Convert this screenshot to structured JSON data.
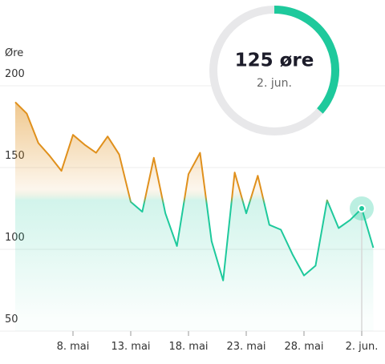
{
  "chart_data": {
    "type": "area-line",
    "y_label": "Øre",
    "annotation": "125 øre",
    "annotation_date": "2. jun.",
    "categories": [
      null,
      null,
      null,
      null,
      null,
      "8. mai",
      null,
      null,
      null,
      null,
      "13. mai",
      null,
      null,
      null,
      null,
      "18. mai",
      null,
      null,
      null,
      null,
      "23. mai",
      null,
      null,
      null,
      null,
      "28. mai",
      null,
      null,
      null,
      null,
      "2. jun.",
      null
    ],
    "values": [
      190,
      183,
      165,
      157,
      148,
      170,
      164,
      159,
      169,
      158,
      129,
      123,
      156,
      122,
      102,
      146,
      159,
      105,
      81,
      147,
      122,
      145,
      115,
      112,
      97,
      84,
      90,
      130,
      113,
      118,
      125,
      101
    ],
    "colors": {
      "high": "#e0901c",
      "low": "#1ec99c"
    },
    "ylim": [
      50,
      200
    ],
    "yticks": [
      50,
      100,
      150,
      200
    ],
    "grid": true
  }
}
